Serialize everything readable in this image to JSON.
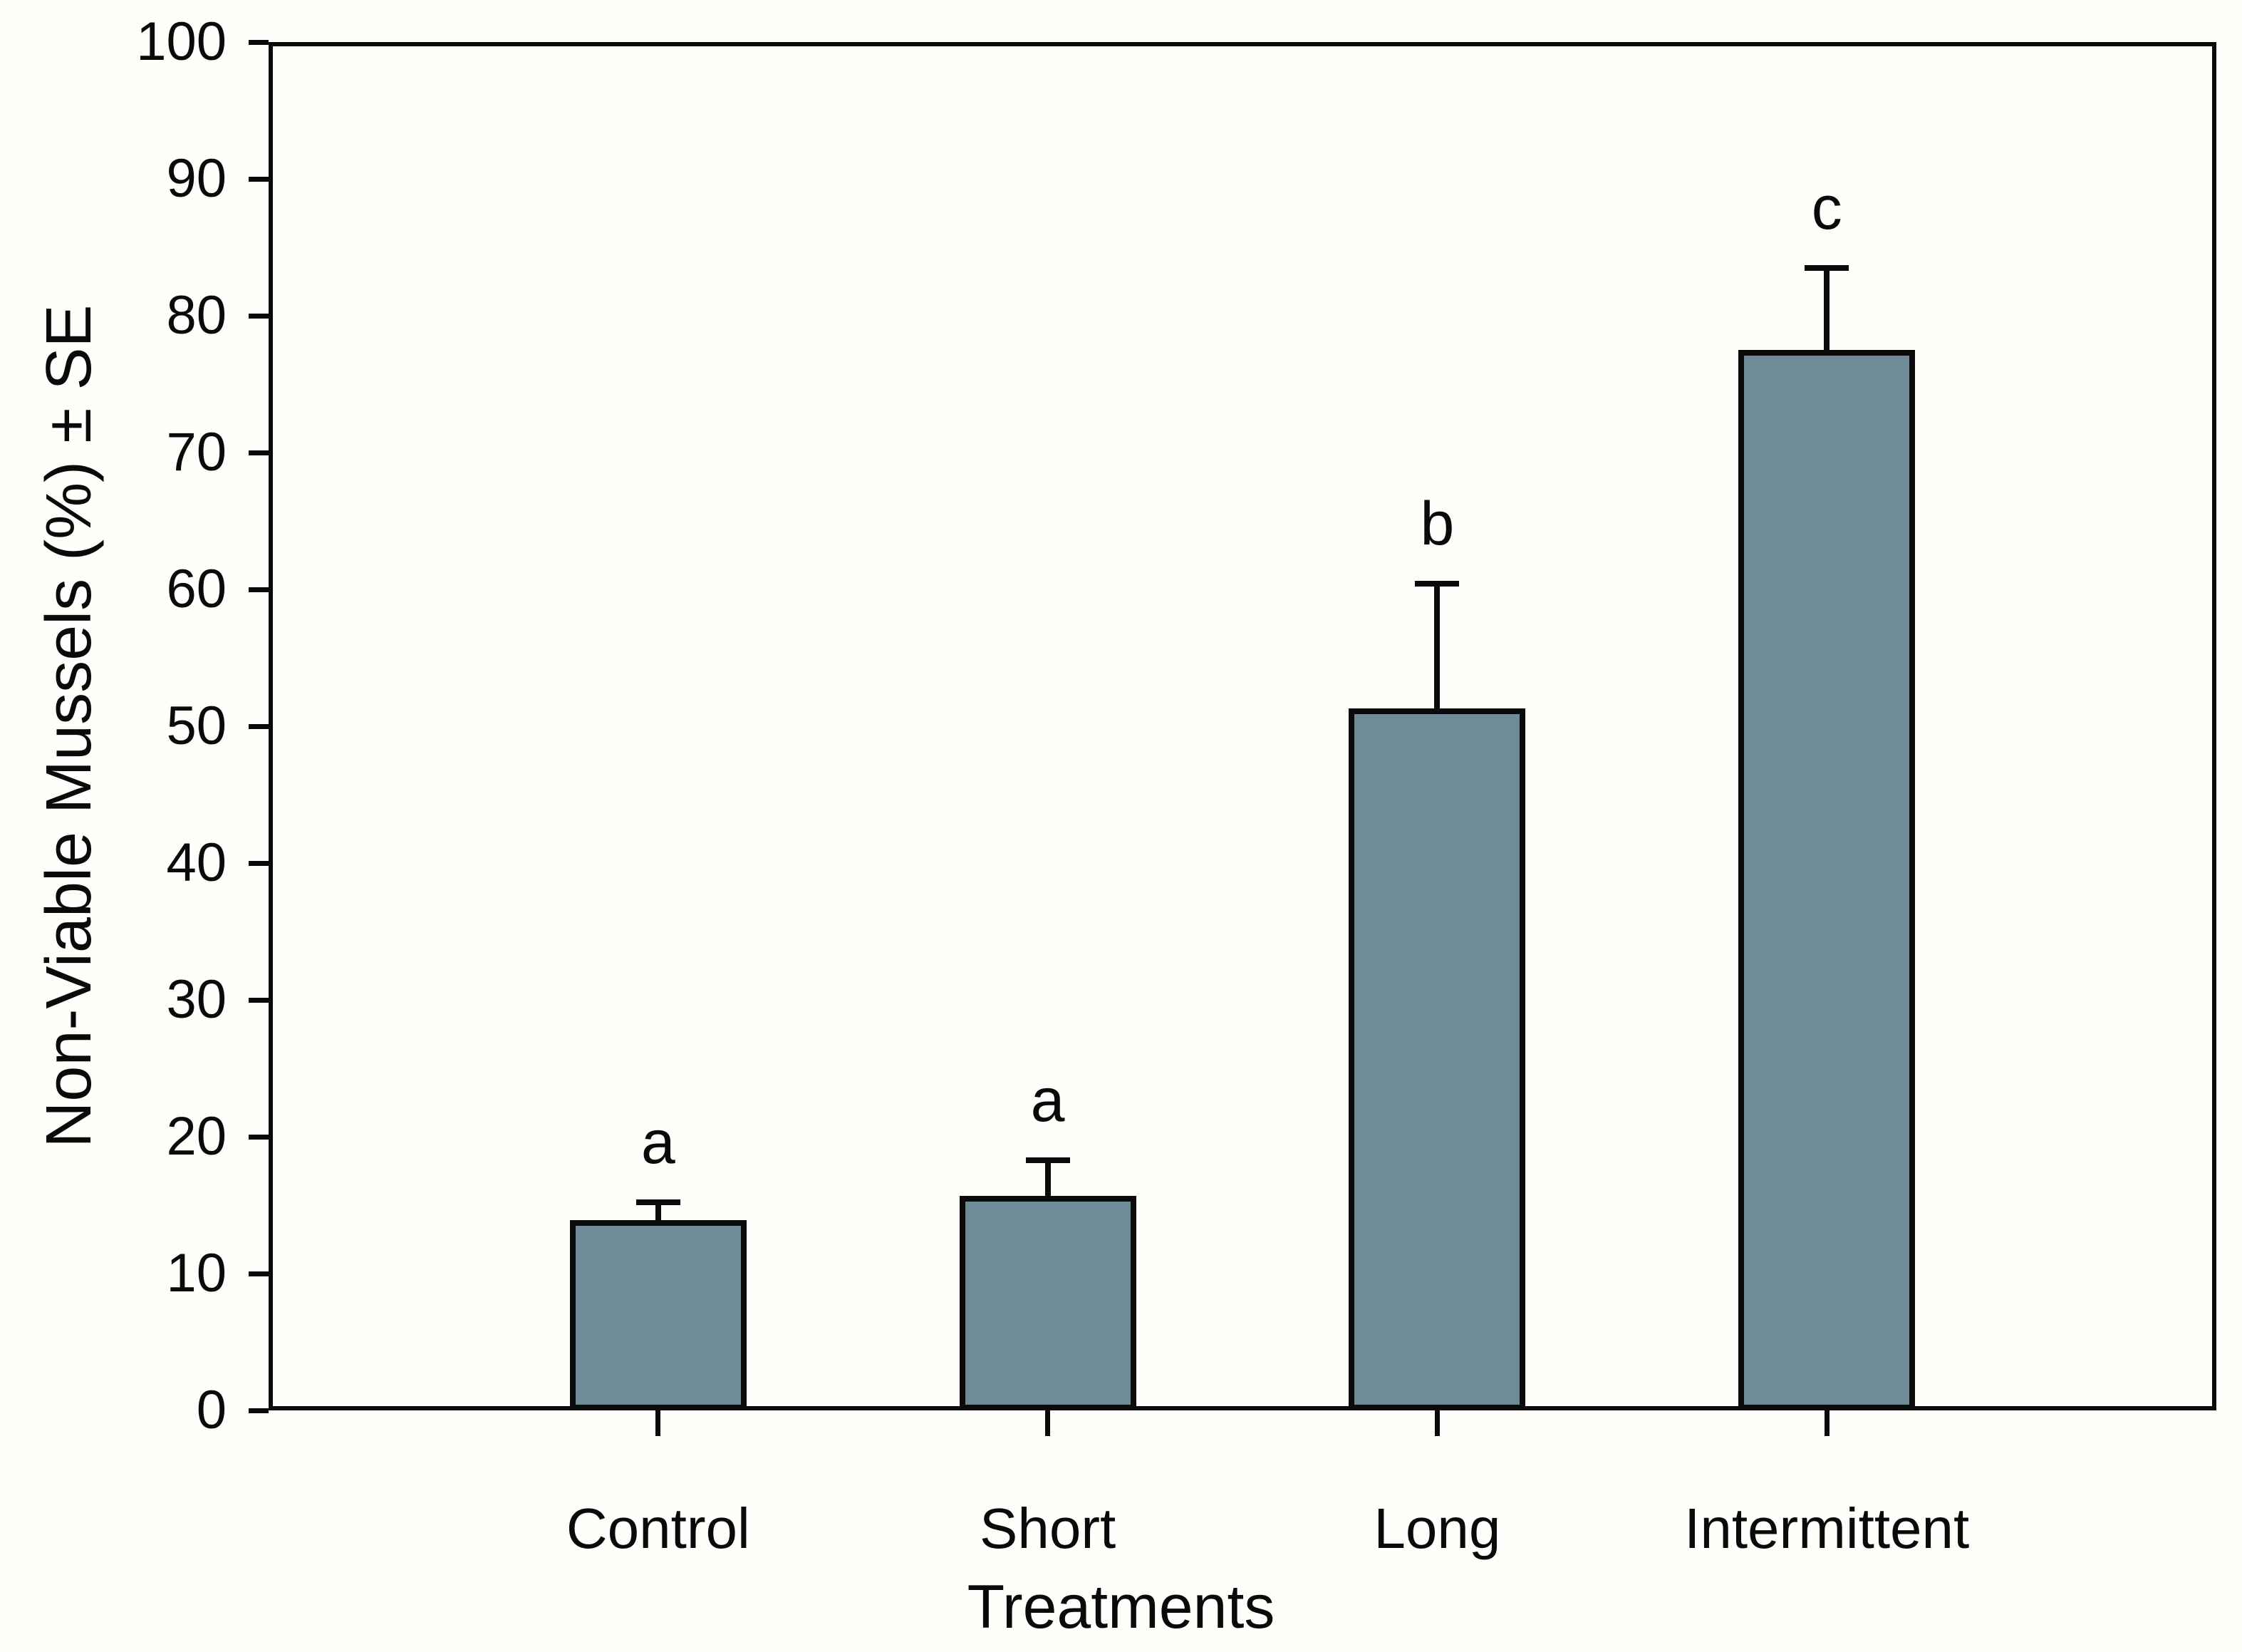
{
  "chart_data": {
    "type": "bar",
    "title": "",
    "xlabel": "Treatments",
    "ylabel": "Non-Viable Mussels (%) ± SE",
    "categories": [
      "Control",
      "Short",
      "Long",
      "Intermittent"
    ],
    "values": [
      13.9,
      15.7,
      51.3,
      77.5
    ],
    "se_upper": [
      1.3,
      2.6,
      9.1,
      6.0
    ],
    "error_bar_tops": [
      15.2,
      18.3,
      60.4,
      83.5
    ],
    "significance_letters": [
      "a",
      "a",
      "b",
      "c"
    ],
    "ylim": [
      0,
      100
    ],
    "ytick_step": 10,
    "ytick_labels": [
      "0",
      "10",
      "20",
      "30",
      "40",
      "50",
      "60",
      "70",
      "80",
      "90",
      "100"
    ],
    "grid": false,
    "legend": null,
    "frame": "full-box",
    "bar_color": "#6E8B97",
    "axis_color": "#0A0A0A",
    "background_color": "#FFFEFB"
  }
}
